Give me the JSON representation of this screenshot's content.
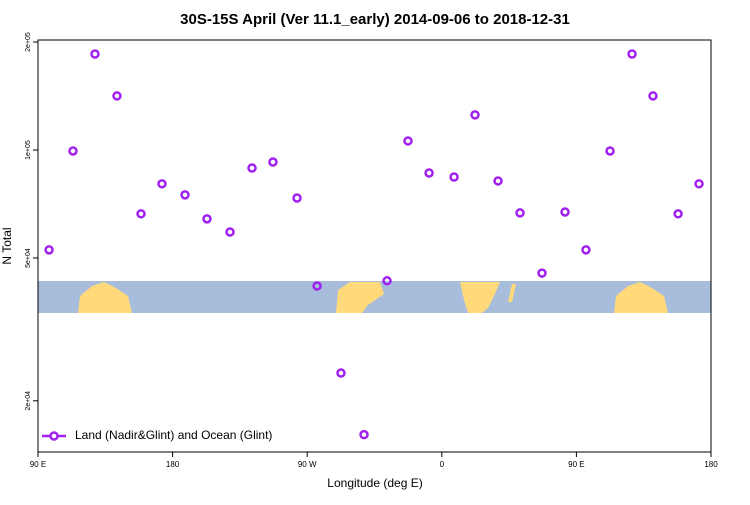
{
  "chart_data": {
    "type": "scatter",
    "title": "30S-15S April (Ver 11.1_early)   2014-09-06 to 2018-12-31",
    "xlabel": "Longitude (deg E)",
    "ylabel": "N Total",
    "xlim": [
      90,
      540
    ],
    "xticks": [
      {
        "value": 90,
        "label": "90 E"
      },
      180,
      {
        "value": 270,
        "label": "90 W"
      },
      {
        "value": 360,
        "label": "0"
      },
      {
        "value": 450,
        "label": "90 E"
      },
      {
        "value": 540,
        "label": "180"
      }
    ],
    "ylim": [
      14400,
      202600
    ],
    "log_y": true,
    "yticks": [
      {
        "value": 20000,
        "label": "2e+04"
      },
      {
        "value": 50000,
        "label": "5e+04"
      },
      {
        "value": 100000,
        "label": "1e+05"
      },
      {
        "value": 200000,
        "label": "2e+05"
      }
    ],
    "legend": "lower left",
    "series": [
      {
        "name": "Land (Nadir&Glint) and Ocean (Glint)",
        "color": "#a020f0",
        "x": [
          97.4,
          113.4,
          128.1,
          142.8,
          158.9,
          172.9,
          188.3,
          203,
          218.4,
          233.1,
          247.1,
          263.2,
          276.6,
          292.6,
          308,
          323.4,
          337.4,
          351.5,
          368.2,
          382.2,
          397.6,
          412.3,
          427,
          442.4,
          456.4,
          472.5,
          487.2,
          501.2,
          518,
          532
        ],
        "values": [
          52700,
          99400,
          185200,
          141500,
          66400,
          80500,
          75000,
          64300,
          59100,
          89100,
          92600,
          73500,
          41800,
          23900,
          16100,
          43200,
          106000,
          86300,
          84100,
          125300,
          82000,
          66800,
          45400,
          67200,
          52700,
          99400,
          185200,
          141500,
          66400,
          80500
        ]
      }
    ]
  }
}
